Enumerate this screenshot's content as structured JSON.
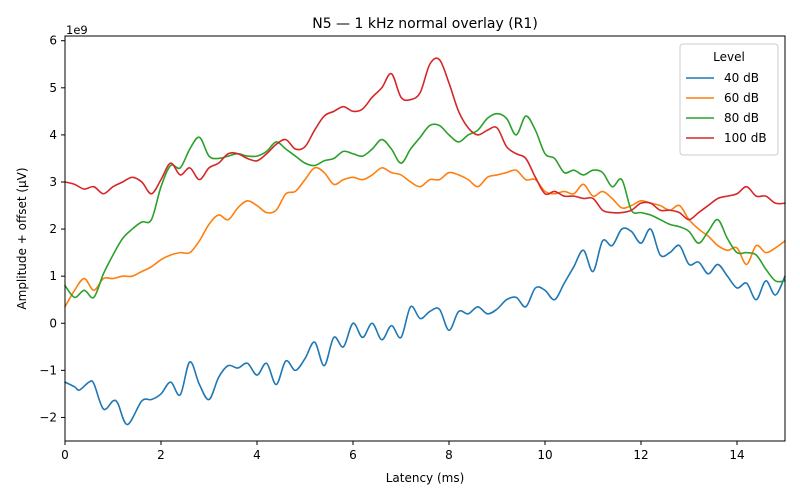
{
  "chart_data": {
    "type": "line",
    "title": "N5 — 1 kHz normal overlay (R1)",
    "xlabel": "Latency (ms)",
    "ylabel": "Amplitude + offset (µV)",
    "offset_label": "1e9",
    "xlim": [
      0,
      15
    ],
    "ylim": [
      -2.5,
      6.1
    ],
    "x_ticks": [
      0,
      2,
      4,
      6,
      8,
      10,
      12,
      14
    ],
    "y_ticks": [
      -2,
      -1,
      0,
      1,
      2,
      3,
      4,
      5,
      6
    ],
    "x_tick_labels": [
      "0",
      "2",
      "4",
      "6",
      "8",
      "10",
      "12",
      "14"
    ],
    "y_tick_labels": [
      "−2",
      "−1",
      "0",
      "1",
      "2",
      "3",
      "4",
      "5",
      "6"
    ],
    "grid": false,
    "legend": {
      "title": "Level",
      "position": "top-right"
    },
    "series": [
      {
        "name": "40 dB",
        "color": "#1f77b4",
        "points": [
          [
            0,
            -1.25
          ],
          [
            0.2,
            -1.35
          ],
          [
            0.3,
            -1.42
          ],
          [
            0.5,
            -1.25
          ],
          [
            0.6,
            -1.28
          ],
          [
            0.8,
            -1.82
          ],
          [
            1.0,
            -1.65
          ],
          [
            1.1,
            -1.7
          ],
          [
            1.3,
            -2.15
          ],
          [
            1.6,
            -1.65
          ],
          [
            1.8,
            -1.62
          ],
          [
            2.0,
            -1.5
          ],
          [
            2.2,
            -1.25
          ],
          [
            2.4,
            -1.52
          ],
          [
            2.6,
            -0.82
          ],
          [
            2.8,
            -1.3
          ],
          [
            3.0,
            -1.62
          ],
          [
            3.2,
            -1.15
          ],
          [
            3.4,
            -0.9
          ],
          [
            3.6,
            -0.95
          ],
          [
            3.8,
            -0.85
          ],
          [
            4.0,
            -1.1
          ],
          [
            4.2,
            -0.85
          ],
          [
            4.4,
            -1.3
          ],
          [
            4.6,
            -0.8
          ],
          [
            4.8,
            -1.0
          ],
          [
            5.0,
            -0.75
          ],
          [
            5.2,
            -0.4
          ],
          [
            5.4,
            -0.9
          ],
          [
            5.6,
            -0.3
          ],
          [
            5.8,
            -0.5
          ],
          [
            6.0,
            0.0
          ],
          [
            6.2,
            -0.3
          ],
          [
            6.4,
            0.0
          ],
          [
            6.6,
            -0.35
          ],
          [
            6.8,
            -0.05
          ],
          [
            7.0,
            -0.3
          ],
          [
            7.2,
            0.35
          ],
          [
            7.4,
            0.1
          ],
          [
            7.6,
            0.25
          ],
          [
            7.8,
            0.3
          ],
          [
            8.0,
            -0.15
          ],
          [
            8.2,
            0.25
          ],
          [
            8.4,
            0.2
          ],
          [
            8.6,
            0.35
          ],
          [
            8.8,
            0.2
          ],
          [
            9.0,
            0.3
          ],
          [
            9.2,
            0.5
          ],
          [
            9.4,
            0.55
          ],
          [
            9.6,
            0.35
          ],
          [
            9.8,
            0.75
          ],
          [
            10.0,
            0.7
          ],
          [
            10.2,
            0.5
          ],
          [
            10.4,
            0.85
          ],
          [
            10.6,
            1.2
          ],
          [
            10.8,
            1.55
          ],
          [
            11.0,
            1.1
          ],
          [
            11.2,
            1.75
          ],
          [
            11.4,
            1.65
          ],
          [
            11.6,
            2.0
          ],
          [
            11.8,
            1.95
          ],
          [
            12.0,
            1.7
          ],
          [
            12.2,
            2.0
          ],
          [
            12.4,
            1.45
          ],
          [
            12.6,
            1.5
          ],
          [
            12.8,
            1.65
          ],
          [
            13.0,
            1.25
          ],
          [
            13.2,
            1.3
          ],
          [
            13.4,
            1.05
          ],
          [
            13.6,
            1.25
          ],
          [
            13.8,
            1.0
          ],
          [
            14.0,
            0.75
          ],
          [
            14.2,
            0.85
          ],
          [
            14.4,
            0.5
          ],
          [
            14.6,
            0.9
          ],
          [
            14.8,
            0.6
          ],
          [
            15.0,
            1.0
          ]
        ]
      },
      {
        "name": "60 dB",
        "color": "#ff7f0e",
        "points": [
          [
            0,
            0.35
          ],
          [
            0.2,
            0.7
          ],
          [
            0.4,
            0.95
          ],
          [
            0.6,
            0.7
          ],
          [
            0.8,
            0.95
          ],
          [
            1.0,
            0.95
          ],
          [
            1.2,
            1.0
          ],
          [
            1.4,
            1.0
          ],
          [
            1.6,
            1.1
          ],
          [
            1.8,
            1.2
          ],
          [
            2.0,
            1.35
          ],
          [
            2.2,
            1.45
          ],
          [
            2.4,
            1.5
          ],
          [
            2.6,
            1.5
          ],
          [
            2.8,
            1.75
          ],
          [
            3.0,
            2.1
          ],
          [
            3.2,
            2.3
          ],
          [
            3.4,
            2.2
          ],
          [
            3.6,
            2.45
          ],
          [
            3.8,
            2.6
          ],
          [
            4.0,
            2.5
          ],
          [
            4.2,
            2.35
          ],
          [
            4.4,
            2.4
          ],
          [
            4.6,
            2.75
          ],
          [
            4.8,
            2.8
          ],
          [
            5.0,
            3.05
          ],
          [
            5.2,
            3.3
          ],
          [
            5.4,
            3.2
          ],
          [
            5.6,
            2.95
          ],
          [
            5.8,
            3.05
          ],
          [
            6.0,
            3.1
          ],
          [
            6.2,
            3.05
          ],
          [
            6.4,
            3.15
          ],
          [
            6.6,
            3.3
          ],
          [
            6.8,
            3.2
          ],
          [
            7.0,
            3.15
          ],
          [
            7.2,
            3.0
          ],
          [
            7.4,
            2.9
          ],
          [
            7.6,
            3.05
          ],
          [
            7.8,
            3.05
          ],
          [
            8.0,
            3.2
          ],
          [
            8.2,
            3.15
          ],
          [
            8.4,
            3.05
          ],
          [
            8.6,
            2.9
          ],
          [
            8.8,
            3.1
          ],
          [
            9.0,
            3.15
          ],
          [
            9.2,
            3.2
          ],
          [
            9.4,
            3.25
          ],
          [
            9.6,
            3.05
          ],
          [
            9.8,
            3.05
          ],
          [
            10.0,
            2.8
          ],
          [
            10.2,
            2.75
          ],
          [
            10.4,
            2.8
          ],
          [
            10.6,
            2.75
          ],
          [
            10.8,
            2.95
          ],
          [
            11.0,
            2.7
          ],
          [
            11.2,
            2.8
          ],
          [
            11.4,
            2.65
          ],
          [
            11.6,
            2.45
          ],
          [
            11.8,
            2.5
          ],
          [
            12.0,
            2.6
          ],
          [
            12.2,
            2.55
          ],
          [
            12.4,
            2.5
          ],
          [
            12.6,
            2.4
          ],
          [
            12.8,
            2.5
          ],
          [
            13.0,
            2.2
          ],
          [
            13.2,
            2.0
          ],
          [
            13.4,
            1.85
          ],
          [
            13.6,
            1.65
          ],
          [
            13.8,
            1.55
          ],
          [
            14.0,
            1.6
          ],
          [
            14.2,
            1.25
          ],
          [
            14.4,
            1.65
          ],
          [
            14.6,
            1.5
          ],
          [
            14.8,
            1.6
          ],
          [
            15.0,
            1.75
          ]
        ]
      },
      {
        "name": "80 dB",
        "color": "#2ca02c",
        "points": [
          [
            0,
            0.8
          ],
          [
            0.2,
            0.55
          ],
          [
            0.4,
            0.7
          ],
          [
            0.6,
            0.55
          ],
          [
            0.8,
            1.05
          ],
          [
            1.0,
            1.45
          ],
          [
            1.2,
            1.8
          ],
          [
            1.4,
            2.0
          ],
          [
            1.6,
            2.15
          ],
          [
            1.8,
            2.2
          ],
          [
            2.0,
            2.9
          ],
          [
            2.2,
            3.35
          ],
          [
            2.4,
            3.3
          ],
          [
            2.6,
            3.7
          ],
          [
            2.8,
            3.95
          ],
          [
            3.0,
            3.55
          ],
          [
            3.2,
            3.5
          ],
          [
            3.4,
            3.55
          ],
          [
            3.6,
            3.6
          ],
          [
            3.8,
            3.55
          ],
          [
            4.0,
            3.55
          ],
          [
            4.2,
            3.65
          ],
          [
            4.4,
            3.85
          ],
          [
            4.6,
            3.7
          ],
          [
            4.8,
            3.55
          ],
          [
            5.0,
            3.4
          ],
          [
            5.2,
            3.35
          ],
          [
            5.4,
            3.45
          ],
          [
            5.6,
            3.5
          ],
          [
            5.8,
            3.65
          ],
          [
            6.0,
            3.6
          ],
          [
            6.2,
            3.55
          ],
          [
            6.4,
            3.7
          ],
          [
            6.6,
            3.9
          ],
          [
            6.8,
            3.7
          ],
          [
            7.0,
            3.4
          ],
          [
            7.2,
            3.7
          ],
          [
            7.4,
            3.95
          ],
          [
            7.6,
            4.2
          ],
          [
            7.8,
            4.2
          ],
          [
            8.0,
            4.0
          ],
          [
            8.2,
            3.85
          ],
          [
            8.4,
            4.0
          ],
          [
            8.6,
            4.1
          ],
          [
            8.8,
            4.35
          ],
          [
            9.0,
            4.45
          ],
          [
            9.2,
            4.35
          ],
          [
            9.4,
            4.0
          ],
          [
            9.6,
            4.4
          ],
          [
            9.8,
            4.1
          ],
          [
            10.0,
            3.6
          ],
          [
            10.2,
            3.5
          ],
          [
            10.4,
            3.2
          ],
          [
            10.6,
            3.25
          ],
          [
            10.8,
            3.15
          ],
          [
            11.0,
            3.25
          ],
          [
            11.2,
            3.2
          ],
          [
            11.4,
            2.9
          ],
          [
            11.6,
            3.05
          ],
          [
            11.8,
            2.4
          ],
          [
            12.0,
            2.35
          ],
          [
            12.2,
            2.3
          ],
          [
            12.4,
            2.2
          ],
          [
            12.6,
            2.1
          ],
          [
            12.8,
            2.05
          ],
          [
            13.0,
            1.95
          ],
          [
            13.2,
            1.7
          ],
          [
            13.4,
            1.95
          ],
          [
            13.6,
            2.2
          ],
          [
            13.8,
            1.8
          ],
          [
            14.0,
            1.5
          ],
          [
            14.2,
            1.5
          ],
          [
            14.4,
            1.45
          ],
          [
            14.6,
            1.15
          ],
          [
            14.8,
            0.9
          ],
          [
            15.0,
            0.9
          ]
        ]
      },
      {
        "name": "100 dB",
        "color": "#d62728",
        "points": [
          [
            0,
            3.0
          ],
          [
            0.2,
            2.95
          ],
          [
            0.4,
            2.85
          ],
          [
            0.6,
            2.9
          ],
          [
            0.8,
            2.75
          ],
          [
            1.0,
            2.9
          ],
          [
            1.2,
            3.0
          ],
          [
            1.4,
            3.1
          ],
          [
            1.6,
            3.0
          ],
          [
            1.8,
            2.75
          ],
          [
            2.0,
            3.05
          ],
          [
            2.2,
            3.4
          ],
          [
            2.4,
            3.15
          ],
          [
            2.6,
            3.3
          ],
          [
            2.8,
            3.05
          ],
          [
            3.0,
            3.3
          ],
          [
            3.2,
            3.4
          ],
          [
            3.4,
            3.6
          ],
          [
            3.6,
            3.6
          ],
          [
            3.8,
            3.5
          ],
          [
            4.0,
            3.45
          ],
          [
            4.2,
            3.6
          ],
          [
            4.4,
            3.8
          ],
          [
            4.6,
            3.9
          ],
          [
            4.8,
            3.7
          ],
          [
            5.0,
            3.75
          ],
          [
            5.2,
            4.1
          ],
          [
            5.4,
            4.4
          ],
          [
            5.6,
            4.5
          ],
          [
            5.8,
            4.6
          ],
          [
            6.0,
            4.5
          ],
          [
            6.2,
            4.55
          ],
          [
            6.4,
            4.8
          ],
          [
            6.6,
            5.0
          ],
          [
            6.8,
            5.3
          ],
          [
            7.0,
            4.8
          ],
          [
            7.2,
            4.75
          ],
          [
            7.4,
            4.9
          ],
          [
            7.6,
            5.5
          ],
          [
            7.8,
            5.6
          ],
          [
            8.0,
            5.1
          ],
          [
            8.2,
            4.5
          ],
          [
            8.4,
            4.15
          ],
          [
            8.6,
            4.0
          ],
          [
            8.8,
            4.1
          ],
          [
            9.0,
            4.15
          ],
          [
            9.2,
            3.75
          ],
          [
            9.4,
            3.6
          ],
          [
            9.6,
            3.5
          ],
          [
            9.8,
            3.1
          ],
          [
            10.0,
            2.75
          ],
          [
            10.2,
            2.8
          ],
          [
            10.4,
            2.7
          ],
          [
            10.6,
            2.7
          ],
          [
            10.8,
            2.65
          ],
          [
            11.0,
            2.65
          ],
          [
            11.2,
            2.4
          ],
          [
            11.4,
            2.35
          ],
          [
            11.6,
            2.35
          ],
          [
            11.8,
            2.4
          ],
          [
            12.0,
            2.55
          ],
          [
            12.2,
            2.55
          ],
          [
            12.4,
            2.4
          ],
          [
            12.6,
            2.4
          ],
          [
            12.8,
            2.35
          ],
          [
            13.0,
            2.2
          ],
          [
            13.2,
            2.35
          ],
          [
            13.4,
            2.5
          ],
          [
            13.6,
            2.65
          ],
          [
            13.8,
            2.7
          ],
          [
            14.0,
            2.75
          ],
          [
            14.2,
            2.9
          ],
          [
            14.4,
            2.7
          ],
          [
            14.6,
            2.7
          ],
          [
            14.8,
            2.55
          ],
          [
            15.0,
            2.55
          ]
        ]
      }
    ]
  }
}
